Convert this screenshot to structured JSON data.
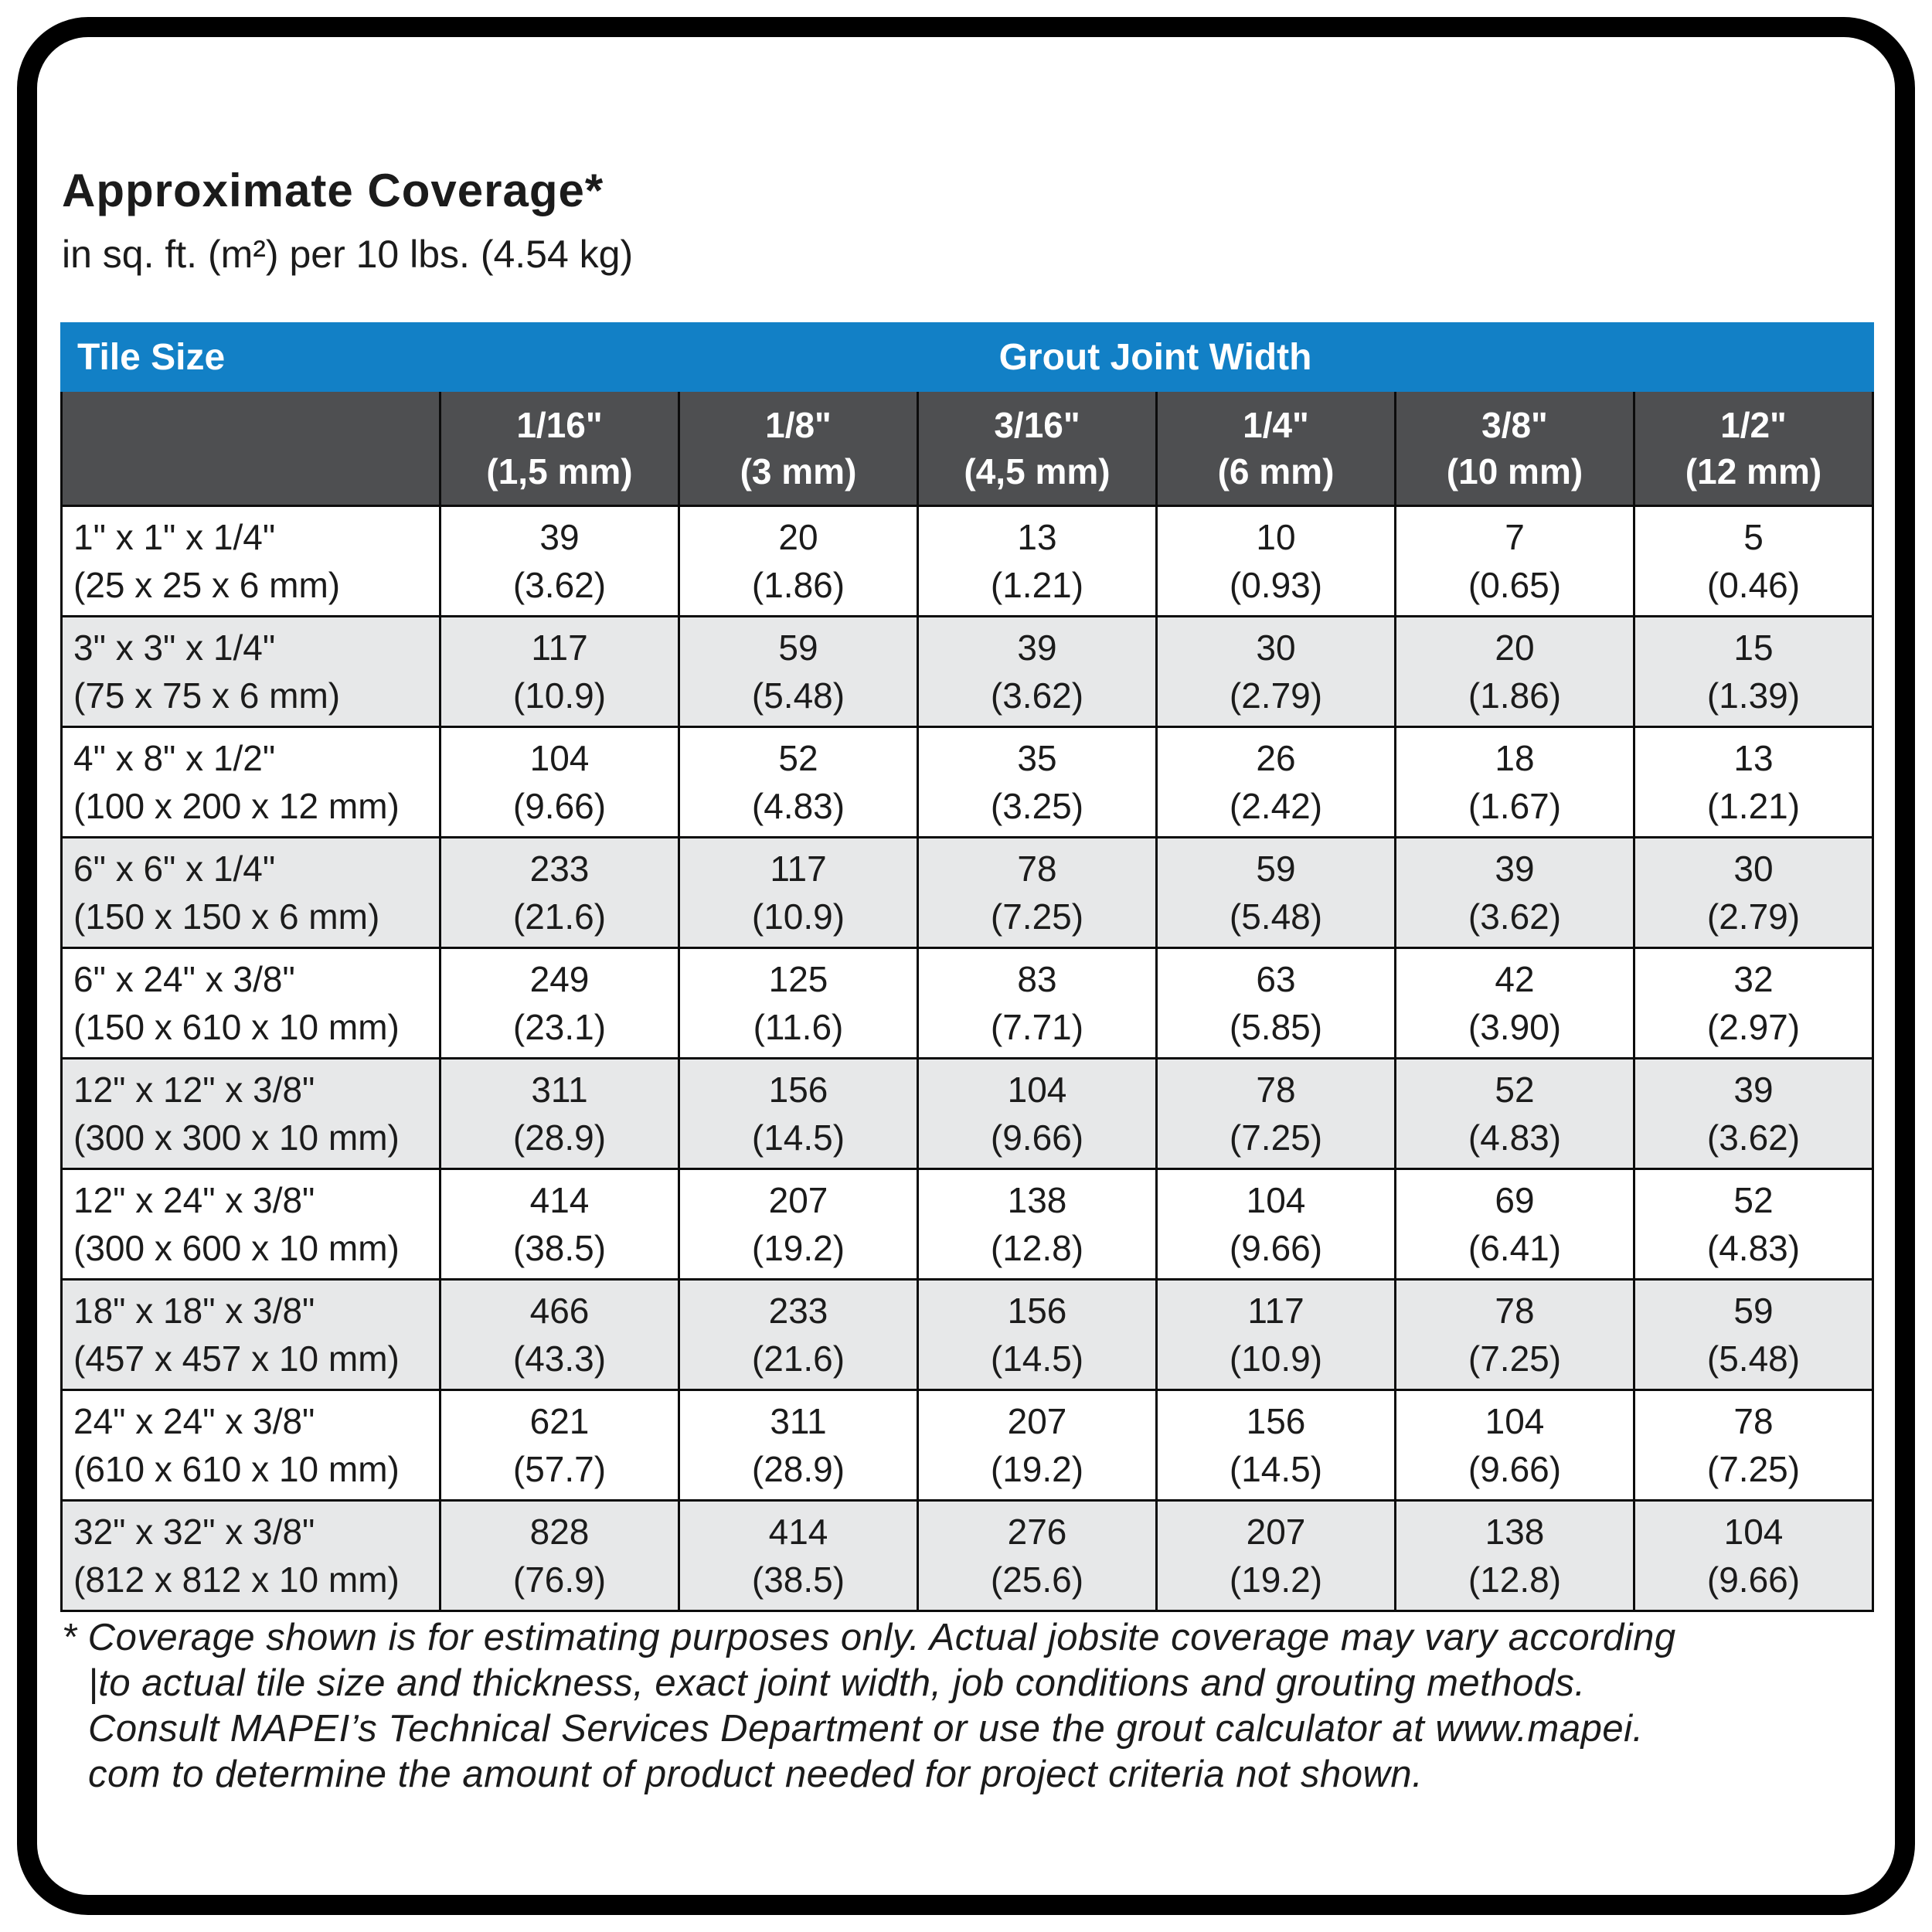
{
  "page": {
    "title": "Approximate Coverage*",
    "subtitle": "in sq. ft. (m²) per 10 lbs. (4.54 kg)"
  },
  "colors": {
    "header_blue": "#1280c6",
    "subheader_gray": "#4e4f51",
    "row_alt_gray": "#e7e8e9",
    "text": "#1b1b1b"
  },
  "table": {
    "corner_label": "Tile Size",
    "group_header": "Grout Joint Width",
    "columns": [
      {
        "inch": "1/16\"",
        "metric": "(1,5 mm)"
      },
      {
        "inch": "1/8\"",
        "metric": "(3 mm)"
      },
      {
        "inch": "3/16\"",
        "metric": "(4,5 mm)"
      },
      {
        "inch": "1/4\"",
        "metric": "(6 mm)"
      },
      {
        "inch": "3/8\"",
        "metric": "(10 mm)"
      },
      {
        "inch": "1/2\"",
        "metric": "(12 mm)"
      }
    ],
    "rows": [
      {
        "size_in": "1\" x 1\" x 1/4\"",
        "size_mm": "(25 x 25 x 6 mm)",
        "values": [
          {
            "v": "39",
            "m": "(3.62)"
          },
          {
            "v": "20",
            "m": "(1.86)"
          },
          {
            "v": "13",
            "m": "(1.21)"
          },
          {
            "v": "10",
            "m": "(0.93)"
          },
          {
            "v": "7",
            "m": "(0.65)"
          },
          {
            "v": "5",
            "m": "(0.46)"
          }
        ]
      },
      {
        "size_in": "3\" x 3\" x 1/4\"",
        "size_mm": "(75 x 75 x 6 mm)",
        "values": [
          {
            "v": "117",
            "m": "(10.9)"
          },
          {
            "v": "59",
            "m": "(5.48)"
          },
          {
            "v": "39",
            "m": "(3.62)"
          },
          {
            "v": "30",
            "m": "(2.79)"
          },
          {
            "v": "20",
            "m": "(1.86)"
          },
          {
            "v": "15",
            "m": "(1.39)"
          }
        ]
      },
      {
        "size_in": "4\" x 8\" x 1/2\"",
        "size_mm": "(100 x 200 x 12 mm)",
        "values": [
          {
            "v": "104",
            "m": "(9.66)"
          },
          {
            "v": "52",
            "m": "(4.83)"
          },
          {
            "v": "35",
            "m": "(3.25)"
          },
          {
            "v": "26",
            "m": "(2.42)"
          },
          {
            "v": "18",
            "m": "(1.67)"
          },
          {
            "v": "13",
            "m": "(1.21)"
          }
        ]
      },
      {
        "size_in": "6\" x 6\" x 1/4\"",
        "size_mm": "(150 x 150 x 6 mm)",
        "values": [
          {
            "v": "233",
            "m": "(21.6)"
          },
          {
            "v": "117",
            "m": "(10.9)"
          },
          {
            "v": "78",
            "m": "(7.25)"
          },
          {
            "v": "59",
            "m": "(5.48)"
          },
          {
            "v": "39",
            "m": "(3.62)"
          },
          {
            "v": "30",
            "m": "(2.79)"
          }
        ]
      },
      {
        "size_in": "6\" x 24\" x 3/8\"",
        "size_mm": "(150 x 610 x 10 mm)",
        "values": [
          {
            "v": "249",
            "m": "(23.1)"
          },
          {
            "v": "125",
            "m": "(11.6)"
          },
          {
            "v": "83",
            "m": "(7.71)"
          },
          {
            "v": "63",
            "m": "(5.85)"
          },
          {
            "v": "42",
            "m": "(3.90)"
          },
          {
            "v": "32",
            "m": "(2.97)"
          }
        ]
      },
      {
        "size_in": "12\" x 12\" x 3/8\"",
        "size_mm": "(300 x 300 x 10 mm)",
        "values": [
          {
            "v": "311",
            "m": "(28.9)"
          },
          {
            "v": "156",
            "m": "(14.5)"
          },
          {
            "v": "104",
            "m": "(9.66)"
          },
          {
            "v": "78",
            "m": "(7.25)"
          },
          {
            "v": "52",
            "m": "(4.83)"
          },
          {
            "v": "39",
            "m": "(3.62)"
          }
        ]
      },
      {
        "size_in": "12\" x 24\" x 3/8\"",
        "size_mm": "(300 x 600 x 10 mm)",
        "values": [
          {
            "v": "414",
            "m": "(38.5)"
          },
          {
            "v": "207",
            "m": "(19.2)"
          },
          {
            "v": "138",
            "m": "(12.8)"
          },
          {
            "v": "104",
            "m": "(9.66)"
          },
          {
            "v": "69",
            "m": "(6.41)"
          },
          {
            "v": "52",
            "m": "(4.83)"
          }
        ]
      },
      {
        "size_in": "18\" x 18\" x 3/8\"",
        "size_mm": "(457 x 457 x 10 mm)",
        "values": [
          {
            "v": "466",
            "m": "(43.3)"
          },
          {
            "v": "233",
            "m": "(21.6)"
          },
          {
            "v": "156",
            "m": "(14.5)"
          },
          {
            "v": "117",
            "m": "(10.9)"
          },
          {
            "v": "78",
            "m": "(7.25)"
          },
          {
            "v": "59",
            "m": "(5.48)"
          }
        ]
      },
      {
        "size_in": "24\" x 24\" x 3/8\"",
        "size_mm": "(610 x 610 x 10 mm)",
        "values": [
          {
            "v": "621",
            "m": "(57.7)"
          },
          {
            "v": "311",
            "m": "(28.9)"
          },
          {
            "v": "207",
            "m": "(19.2)"
          },
          {
            "v": "156",
            "m": "(14.5)"
          },
          {
            "v": "104",
            "m": "(9.66)"
          },
          {
            "v": "78",
            "m": "(7.25)"
          }
        ]
      },
      {
        "size_in": "32\" x 32\" x 3/8\"",
        "size_mm": "(812 x 812 x 10 mm)",
        "values": [
          {
            "v": "828",
            "m": "(76.9)"
          },
          {
            "v": "414",
            "m": "(38.5)"
          },
          {
            "v": "276",
            "m": "(25.6)"
          },
          {
            "v": "207",
            "m": "(19.2)"
          },
          {
            "v": "138",
            "m": "(12.8)"
          },
          {
            "v": "104",
            "m": "(9.66)"
          }
        ]
      }
    ]
  },
  "footnote": {
    "lines": [
      "* Coverage shown is for estimating purposes only. Actual jobsite coverage may vary according",
      "|to actual tile size and thickness, exact joint width, job conditions and grouting methods.",
      "Consult MAPEI’s Technical Services Department or use the grout calculator at www.mapei.",
      "com to determine the amount of product needed for project criteria not shown."
    ]
  }
}
